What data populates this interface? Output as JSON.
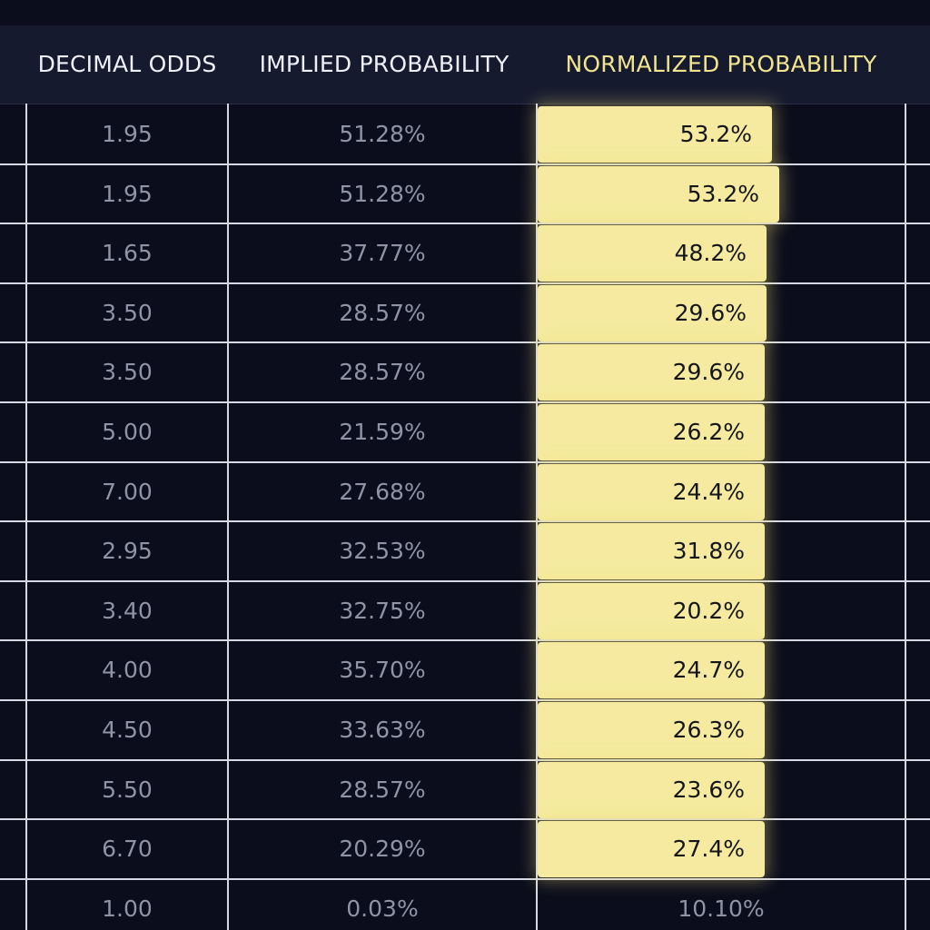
{
  "table": {
    "headers": {
      "decimal_odds": "DECIMAL ODDS",
      "implied_probability": "IMPLIED PROBABILITY",
      "normalized_probability": "NORMALIZED PROBABILITY"
    },
    "highlight_color": "#f5ea9f",
    "header_accent_color": "#f1e48e",
    "rows": [
      {
        "decimal_odds": "1.95",
        "implied_probability": "51.28%",
        "normalized_probability": "53.2%",
        "highlighted": true
      },
      {
        "decimal_odds": "1.95",
        "implied_probability": "51.28%",
        "normalized_probability": "53.2%",
        "highlighted": true
      },
      {
        "decimal_odds": "1.65",
        "implied_probability": "37.77%",
        "normalized_probability": "48.2%",
        "highlighted": true
      },
      {
        "decimal_odds": "3.50",
        "implied_probability": "28.57%",
        "normalized_probability": "29.6%",
        "highlighted": true
      },
      {
        "decimal_odds": "3.50",
        "implied_probability": "28.57%",
        "normalized_probability": "29.6%",
        "highlighted": true
      },
      {
        "decimal_odds": "5.00",
        "implied_probability": "21.59%",
        "normalized_probability": "26.2%",
        "highlighted": true
      },
      {
        "decimal_odds": "7.00",
        "implied_probability": "27.68%",
        "normalized_probability": "24.4%",
        "highlighted": true
      },
      {
        "decimal_odds": "2.95",
        "implied_probability": "32.53%",
        "normalized_probability": "31.8%",
        "highlighted": true
      },
      {
        "decimal_odds": "3.40",
        "implied_probability": "32.75%",
        "normalized_probability": "20.2%",
        "highlighted": true
      },
      {
        "decimal_odds": "4.00",
        "implied_probability": "35.70%",
        "normalized_probability": "24.7%",
        "highlighted": true
      },
      {
        "decimal_odds": "4.50",
        "implied_probability": "33.63%",
        "normalized_probability": "26.3%",
        "highlighted": true
      },
      {
        "decimal_odds": "5.50",
        "implied_probability": "28.57%",
        "normalized_probability": "23.6%",
        "highlighted": true
      },
      {
        "decimal_odds": "6.70",
        "implied_probability": "20.29%",
        "normalized_probability": "27.4%",
        "highlighted": true
      },
      {
        "decimal_odds": "1.00",
        "implied_probability": "0.03%",
        "normalized_probability": "10.10%",
        "highlighted": false
      }
    ]
  }
}
